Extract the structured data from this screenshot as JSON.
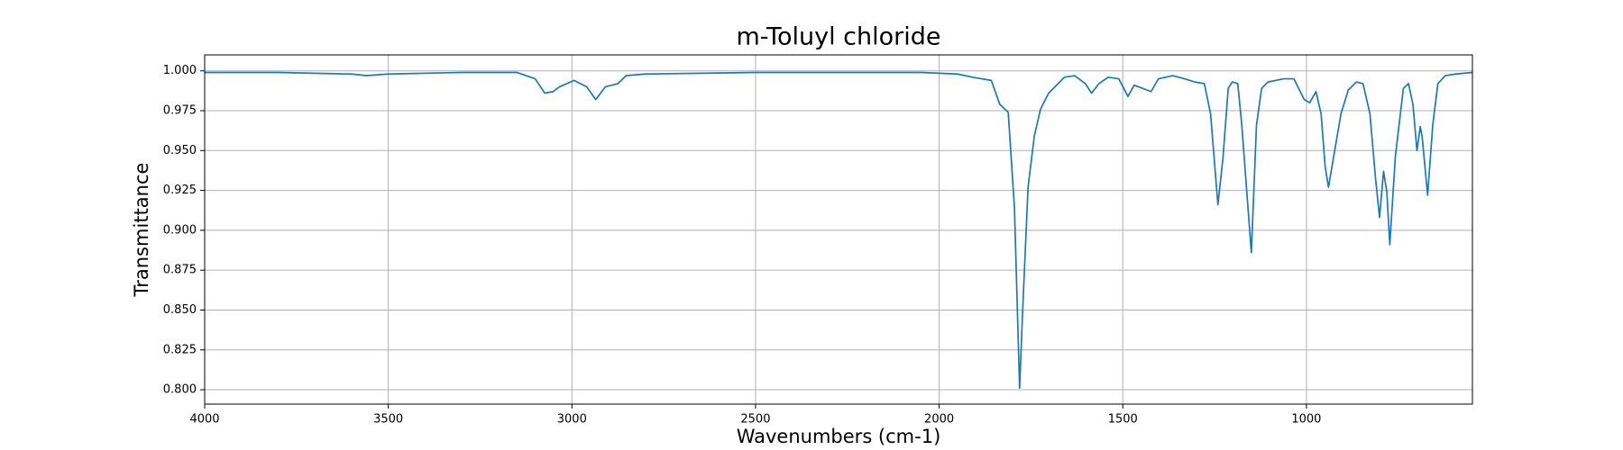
{
  "chart_data": {
    "type": "line",
    "title": "m-Toluyl chloride",
    "x_label": "Wavenumbers (cm-1)",
    "y_label": "Transmittance",
    "xlim": [
      4000,
      548
    ],
    "ylim": [
      0.791,
      1.01
    ],
    "x_reversed": true,
    "grid": true,
    "xticks": [
      4000,
      3500,
      3000,
      2500,
      2000,
      1500,
      1000
    ],
    "yticks": [
      {
        "value": 0.8,
        "label": "0.800"
      },
      {
        "value": 0.825,
        "label": "0.825"
      },
      {
        "value": 0.85,
        "label": "0.850"
      },
      {
        "value": 0.875,
        "label": "0.875"
      },
      {
        "value": 0.9,
        "label": "0.900"
      },
      {
        "value": 0.925,
        "label": "0.925"
      },
      {
        "value": 0.95,
        "label": "0.950"
      },
      {
        "value": 0.975,
        "label": "0.975"
      },
      {
        "value": 1,
        "label": "1.000"
      }
    ],
    "x": [
      4000,
      3800,
      3600,
      3560,
      3500,
      3300,
      3150,
      3100,
      3074,
      3051,
      3034,
      2994,
      2960,
      2935,
      2909,
      2875,
      2852,
      2800,
      2500,
      2050,
      1950,
      1909,
      1858,
      1835,
      1812,
      1795,
      1781,
      1773,
      1758,
      1741,
      1724,
      1702,
      1659,
      1631,
      1602,
      1585,
      1565,
      1540,
      1511,
      1486,
      1469,
      1446,
      1423,
      1403,
      1364,
      1332,
      1304,
      1278,
      1261,
      1241,
      1227,
      1213,
      1202,
      1187,
      1176,
      1150,
      1136,
      1122,
      1105,
      1062,
      1034,
      1006,
      991,
      974,
      960,
      949,
      940,
      926,
      906,
      886,
      864,
      846,
      827,
      812,
      801,
      790,
      781,
      773,
      758,
      736,
      722,
      710,
      699,
      690,
      685,
      670,
      656,
      642,
      622,
      594,
      548
    ],
    "series": [
      {
        "name": "m-Toluyl chloride",
        "color": "#1f77b4",
        "values": [
          0.999,
          0.999,
          0.998,
          0.997,
          0.998,
          0.999,
          0.999,
          0.995,
          0.986,
          0.987,
          0.99,
          0.994,
          0.99,
          0.982,
          0.99,
          0.992,
          0.997,
          0.998,
          0.999,
          0.999,
          0.998,
          0.996,
          0.994,
          0.979,
          0.974,
          0.914,
          0.801,
          0.848,
          0.927,
          0.959,
          0.976,
          0.986,
          0.996,
          0.997,
          0.992,
          0.986,
          0.992,
          0.996,
          0.995,
          0.984,
          0.991,
          0.989,
          0.987,
          0.995,
          0.997,
          0.995,
          0.993,
          0.992,
          0.973,
          0.916,
          0.946,
          0.989,
          0.993,
          0.992,
          0.966,
          0.886,
          0.966,
          0.989,
          0.993,
          0.995,
          0.995,
          0.982,
          0.98,
          0.987,
          0.973,
          0.94,
          0.927,
          0.946,
          0.973,
          0.988,
          0.993,
          0.992,
          0.973,
          0.933,
          0.908,
          0.937,
          0.924,
          0.891,
          0.946,
          0.989,
          0.992,
          0.979,
          0.95,
          0.965,
          0.959,
          0.922,
          0.966,
          0.992,
          0.997,
          0.998,
          0.999
        ]
      }
    ]
  }
}
